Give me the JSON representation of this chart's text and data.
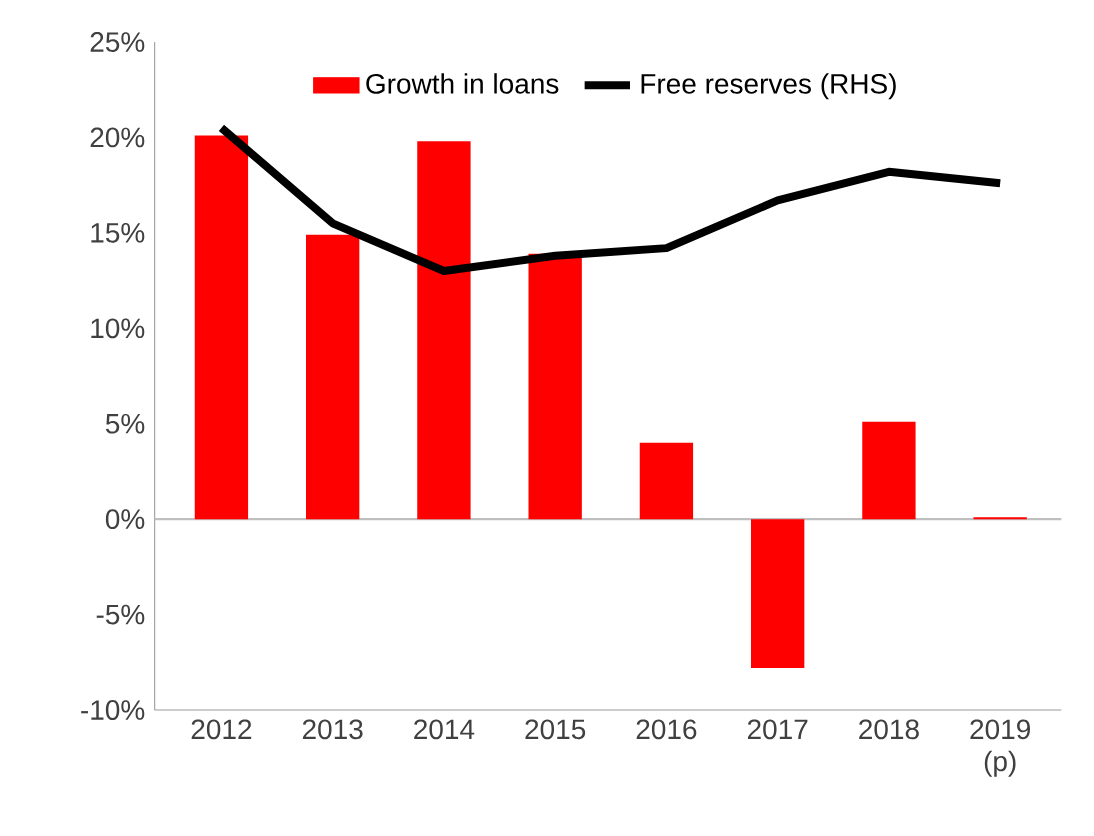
{
  "chart_data": {
    "type": "bar",
    "categories": [
      "2012",
      "2013",
      "2014",
      "2015",
      "2016",
      "2017",
      "2018",
      "2019 (p)"
    ],
    "series": [
      {
        "name": "Growth in loans",
        "type": "bar",
        "color": "#ff0000",
        "values": [
          20.1,
          14.9,
          19.8,
          13.9,
          4.0,
          -7.8,
          5.1,
          0.1
        ]
      },
      {
        "name": "Free reserves (RHS)",
        "type": "line",
        "color": "#000000",
        "values": [
          20.5,
          15.5,
          13.0,
          13.8,
          14.2,
          16.7,
          18.2,
          17.6
        ]
      }
    ],
    "ylim": [
      -10,
      25
    ],
    "yticks": [
      {
        "value": -10,
        "label": "-10%"
      },
      {
        "value": -5,
        "label": "-5%"
      },
      {
        "value": 0,
        "label": "0%"
      },
      {
        "value": 5,
        "label": "5%"
      },
      {
        "value": 10,
        "label": "10%"
      },
      {
        "value": 15,
        "label": "15%"
      },
      {
        "value": 20,
        "label": "20%"
      },
      {
        "value": 25,
        "label": "25%"
      }
    ],
    "ref_lines": [
      {
        "axis": "y",
        "value": 0,
        "color": "#bfbfbf"
      }
    ],
    "legend": "top",
    "grid": false,
    "marker": "none",
    "line_style": "solid"
  }
}
